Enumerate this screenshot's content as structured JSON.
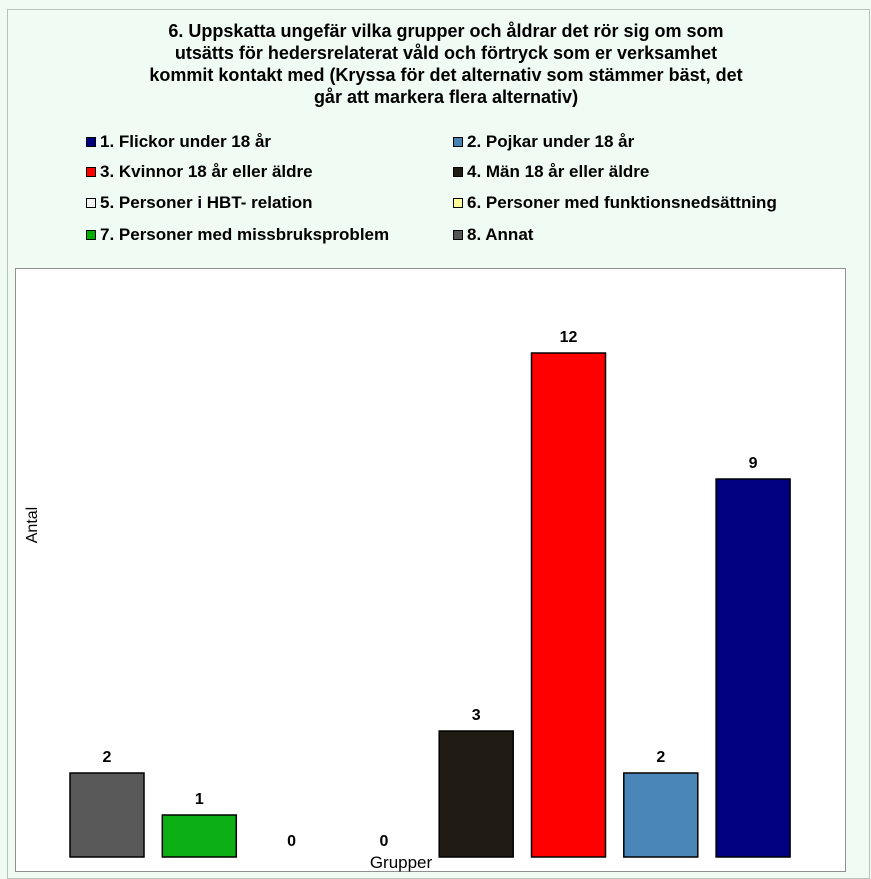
{
  "chart_data": {
    "type": "bar",
    "title": "6. Uppskatta ungefär vilka grupper och åldrar det rör sig om som\nutsätts för hedersrelaterat våld och förtryck som er verksamhet\nkommit kontakt med (Kryssa för det alternativ som stämmer bäst, det\ngår att markera flera alternativ)",
    "xlabel": "Grupper",
    "ylabel": "Antal",
    "ylim": [
      0,
      14
    ],
    "grid": false,
    "legend_position": "top",
    "legend": [
      {
        "label": "1. Flickor under 18 år",
        "color": "#000080"
      },
      {
        "label": "2. Pojkar under 18 år",
        "color": "#4682b4"
      },
      {
        "label": "3. Kvinnor 18 år eller äldre",
        "color": "#ff0000"
      },
      {
        "label": "4. Män 18 år eller äldre",
        "color": "#201c14"
      },
      {
        "label": "5. Personer i HBT- relation",
        "color": "#f2f2f2"
      },
      {
        "label": "6. Personer med funktionsnedsättning",
        "color": "#ffff99"
      },
      {
        "label": "7. Personer med missbruksproblem",
        "color": "#00b000"
      },
      {
        "label": "8. Annat",
        "color": "#555555"
      }
    ],
    "bars": [
      {
        "value": 2,
        "label": "2",
        "color": "#595959"
      },
      {
        "value": 1,
        "label": "1",
        "color": "#0db014"
      },
      {
        "value": 0,
        "label": "0",
        "color": "#ffff99"
      },
      {
        "value": 0,
        "label": "0",
        "color": "#f2f2f2"
      },
      {
        "value": 3,
        "label": "3",
        "color": "#201c14"
      },
      {
        "value": 12,
        "label": "12",
        "color": "#ff0000"
      },
      {
        "value": 2,
        "label": "2",
        "color": "#4a87b8"
      },
      {
        "value": 9,
        "label": "9",
        "color": "#000080"
      }
    ]
  }
}
